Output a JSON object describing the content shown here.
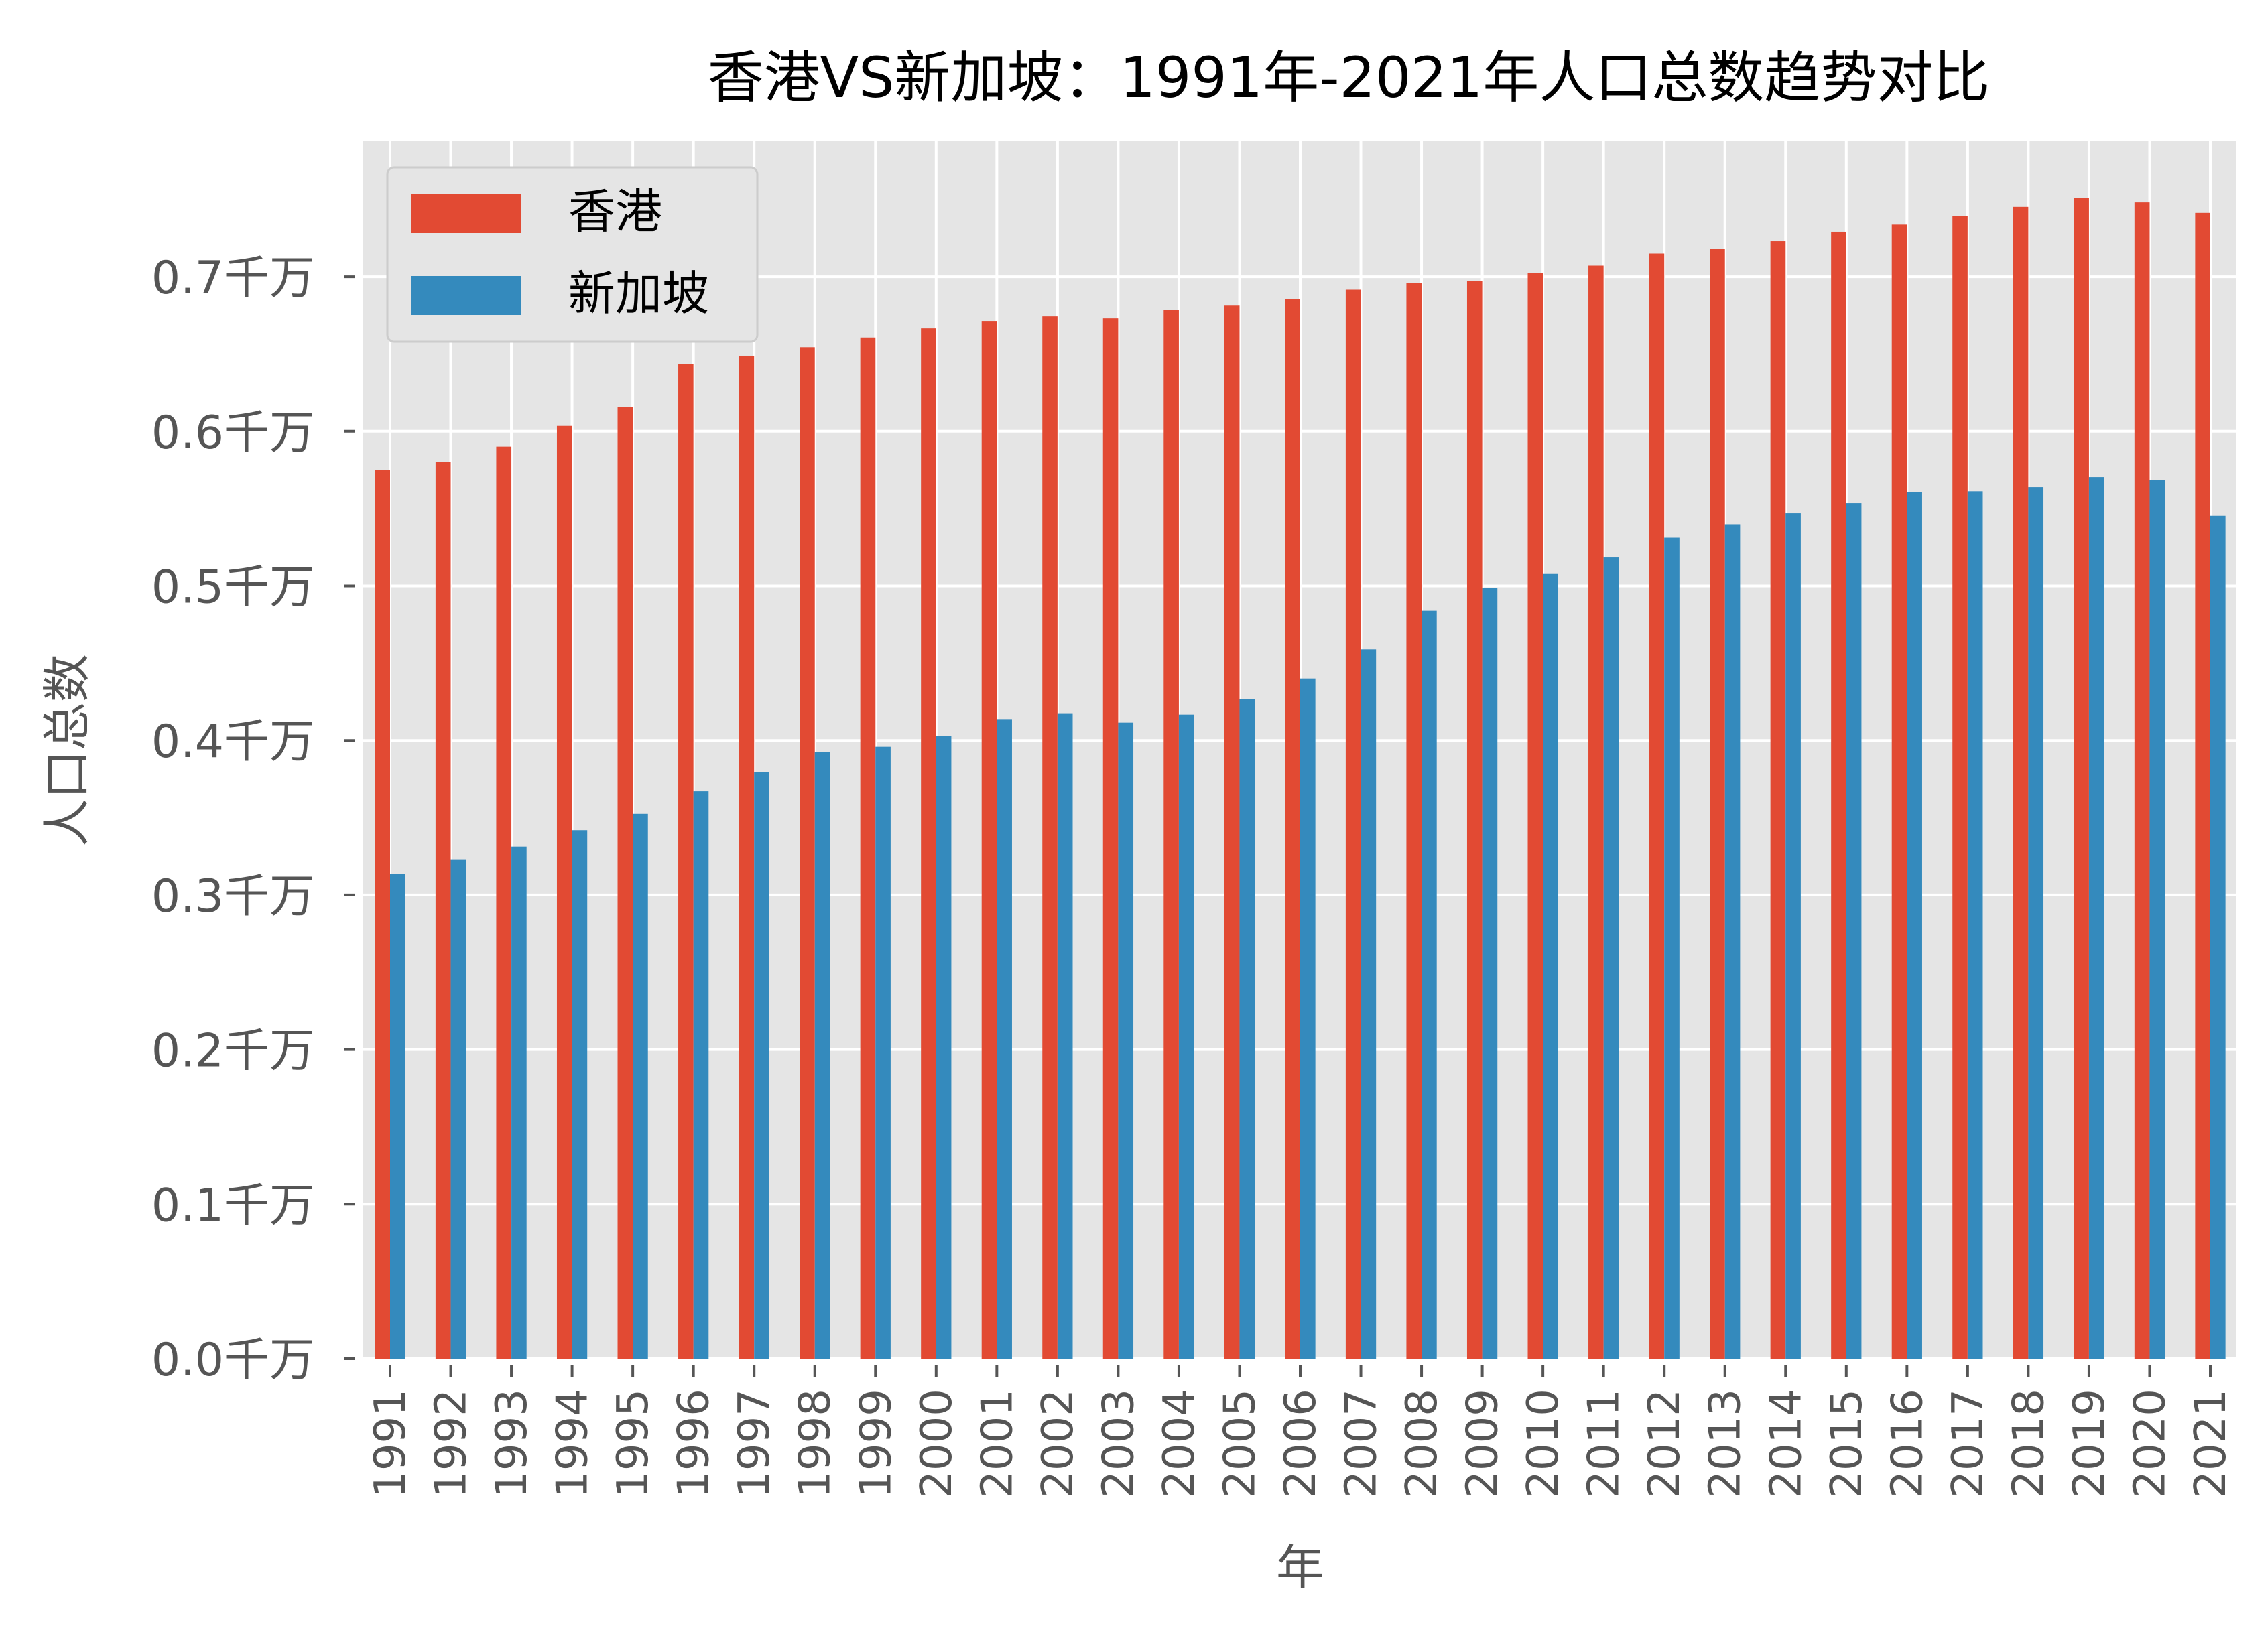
{
  "chart_data": {
    "type": "bar",
    "title": "香港VS新加坡：1991年-2021年人口总数趋势对比",
    "xlabel": "年",
    "ylabel": "人口总数",
    "categories": [
      "1991",
      "1992",
      "1993",
      "1994",
      "1995",
      "1996",
      "1997",
      "1998",
      "1999",
      "2000",
      "2001",
      "2002",
      "2003",
      "2004",
      "2005",
      "2006",
      "2007",
      "2008",
      "2009",
      "2010",
      "2011",
      "2012",
      "2013",
      "2014",
      "2015",
      "2016",
      "2017",
      "2018",
      "2019",
      "2020",
      "2021"
    ],
    "series": [
      {
        "name": "香港",
        "color": "#E24A33",
        "values": [
          0.5752,
          0.5801,
          0.5901,
          0.6035,
          0.6156,
          0.6435,
          0.6489,
          0.6544,
          0.6607,
          0.6666,
          0.6714,
          0.6744,
          0.6731,
          0.6784,
          0.6813,
          0.6857,
          0.6916,
          0.6958,
          0.6973,
          0.7024,
          0.7072,
          0.715,
          0.7179,
          0.723,
          0.7291,
          0.7337,
          0.7392,
          0.7452,
          0.7508,
          0.7481,
          0.7413
        ]
      },
      {
        "name": "新加坡",
        "color": "#348ABD",
        "values": [
          0.3135,
          0.3231,
          0.3313,
          0.3419,
          0.3525,
          0.3671,
          0.3796,
          0.3927,
          0.3959,
          0.4028,
          0.4138,
          0.4176,
          0.4115,
          0.4167,
          0.4266,
          0.4401,
          0.4589,
          0.4839,
          0.4988,
          0.5077,
          0.5184,
          0.5312,
          0.5399,
          0.547,
          0.5535,
          0.5607,
          0.5612,
          0.5639,
          0.5704,
          0.5686,
          0.5454
        ]
      }
    ],
    "ylim": [
      0,
      0.78
    ],
    "yticks": [
      0.0,
      0.1,
      0.2,
      0.3,
      0.4,
      0.5,
      0.6,
      0.7
    ],
    "ytick_labels": [
      "0.0千万",
      "0.1千万",
      "0.2千万",
      "0.3千万",
      "0.4千万",
      "0.5千万",
      "0.6千万",
      "0.7千万"
    ],
    "grid": true,
    "legend_position": "top-left",
    "style": {
      "background": "#E5E5E5",
      "grid_color": "#FFFFFF",
      "text_color": "#555555"
    }
  }
}
